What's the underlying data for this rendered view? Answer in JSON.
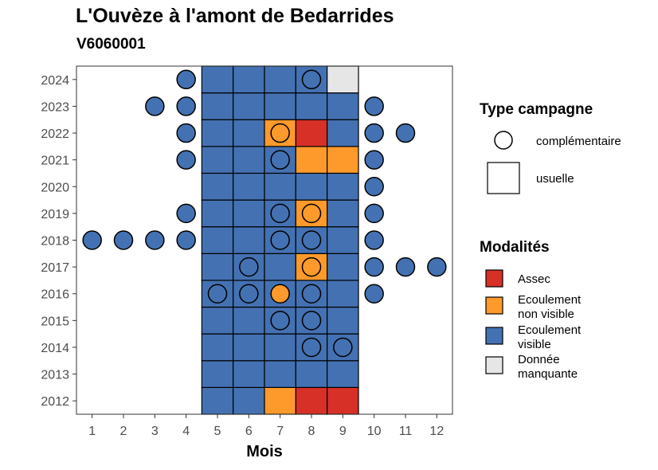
{
  "chart_data": {
    "type": "heatmap",
    "title": "L'Ouvèze à l'amont de Bedarrides",
    "subtitle": "V6060001",
    "xlabel": "Mois",
    "ylabel": "",
    "x_ticks": [
      "1",
      "2",
      "3",
      "4",
      "5",
      "6",
      "7",
      "8",
      "9",
      "10",
      "11",
      "12"
    ],
    "y_ticks": [
      "2012",
      "2013",
      "2014",
      "2015",
      "2016",
      "2017",
      "2018",
      "2019",
      "2020",
      "2021",
      "2022",
      "2023",
      "2024"
    ],
    "xlim": [
      0.5,
      12.5
    ],
    "ylim": [
      2011.5,
      2024.5
    ],
    "legend_position": "right",
    "legend": {
      "type_title": "Type campagne",
      "type_items": [
        {
          "label": "complémentaire",
          "shape": "circle"
        },
        {
          "label": "usuelle",
          "shape": "square"
        }
      ],
      "modalites_title": "Modalités",
      "modalites_items": [
        {
          "key": "assec",
          "lines": [
            "Assec"
          ]
        },
        {
          "key": "ecoulement_non_visible",
          "lines": [
            "Ecoulement",
            "non visible"
          ]
        },
        {
          "key": "ecoulement_visible",
          "lines": [
            "Ecoulement",
            "visible"
          ]
        },
        {
          "key": "donnee_manquante",
          "lines": [
            "Donnée",
            "manquante"
          ]
        }
      ]
    },
    "colors": {
      "assec": "#d73027",
      "ecoulement_non_visible": "#fd9a2b",
      "ecoulement_visible": "#4471b2",
      "donnee_manquante": "#e6e6e6"
    },
    "usuelle": [
      {
        "year": 2012,
        "months": {
          "5": "ecoulement_visible",
          "6": "ecoulement_visible",
          "7": "ecoulement_non_visible",
          "8": "assec",
          "9": "assec"
        }
      },
      {
        "year": 2013,
        "months": {
          "5": "ecoulement_visible",
          "6": "ecoulement_visible",
          "7": "ecoulement_visible",
          "8": "ecoulement_visible",
          "9": "ecoulement_visible"
        }
      },
      {
        "year": 2014,
        "months": {
          "5": "ecoulement_visible",
          "6": "ecoulement_visible",
          "7": "ecoulement_visible",
          "8": "ecoulement_visible",
          "9": "ecoulement_visible"
        }
      },
      {
        "year": 2015,
        "months": {
          "5": "ecoulement_visible",
          "6": "ecoulement_visible",
          "7": "ecoulement_visible",
          "8": "ecoulement_visible",
          "9": "ecoulement_visible"
        }
      },
      {
        "year": 2016,
        "months": {
          "5": "ecoulement_visible",
          "6": "ecoulement_visible",
          "7": "ecoulement_visible",
          "8": "ecoulement_visible",
          "9": "ecoulement_visible"
        }
      },
      {
        "year": 2017,
        "months": {
          "5": "ecoulement_visible",
          "6": "ecoulement_visible",
          "7": "ecoulement_visible",
          "8": "ecoulement_non_visible",
          "9": "ecoulement_visible"
        }
      },
      {
        "year": 2018,
        "months": {
          "5": "ecoulement_visible",
          "6": "ecoulement_visible",
          "7": "ecoulement_visible",
          "8": "ecoulement_visible",
          "9": "ecoulement_visible"
        }
      },
      {
        "year": 2019,
        "months": {
          "5": "ecoulement_visible",
          "6": "ecoulement_visible",
          "7": "ecoulement_visible",
          "8": "ecoulement_non_visible",
          "9": "ecoulement_visible"
        }
      },
      {
        "year": 2020,
        "months": {
          "5": "ecoulement_visible",
          "6": "ecoulement_visible",
          "7": "ecoulement_visible",
          "8": "ecoulement_visible",
          "9": "ecoulement_visible"
        }
      },
      {
        "year": 2021,
        "months": {
          "5": "ecoulement_visible",
          "6": "ecoulement_visible",
          "7": "ecoulement_visible",
          "8": "ecoulement_non_visible",
          "9": "ecoulement_non_visible"
        }
      },
      {
        "year": 2022,
        "months": {
          "5": "ecoulement_visible",
          "6": "ecoulement_visible",
          "7": "ecoulement_non_visible",
          "8": "assec",
          "9": "ecoulement_visible"
        }
      },
      {
        "year": 2023,
        "months": {
          "5": "ecoulement_visible",
          "6": "ecoulement_visible",
          "7": "ecoulement_visible",
          "8": "ecoulement_visible",
          "9": "ecoulement_visible"
        }
      },
      {
        "year": 2024,
        "months": {
          "5": "ecoulement_visible",
          "6": "ecoulement_visible",
          "7": "ecoulement_visible",
          "8": "ecoulement_visible",
          "9": "donnee_manquante"
        }
      }
    ],
    "complementaire": [
      {
        "year": 2024,
        "month": 4,
        "modalite": "ecoulement_visible"
      },
      {
        "year": 2024,
        "month": 8,
        "modalite": "ecoulement_visible"
      },
      {
        "year": 2023,
        "month": 3,
        "modalite": "ecoulement_visible"
      },
      {
        "year": 2023,
        "month": 4,
        "modalite": "ecoulement_visible"
      },
      {
        "year": 2023,
        "month": 10,
        "modalite": "ecoulement_visible"
      },
      {
        "year": 2022,
        "month": 4,
        "modalite": "ecoulement_visible"
      },
      {
        "year": 2022,
        "month": 7,
        "modalite": "ecoulement_non_visible"
      },
      {
        "year": 2022,
        "month": 10,
        "modalite": "ecoulement_visible"
      },
      {
        "year": 2022,
        "month": 11,
        "modalite": "ecoulement_visible"
      },
      {
        "year": 2021,
        "month": 4,
        "modalite": "ecoulement_visible"
      },
      {
        "year": 2021,
        "month": 7,
        "modalite": "ecoulement_visible"
      },
      {
        "year": 2021,
        "month": 10,
        "modalite": "ecoulement_visible"
      },
      {
        "year": 2020,
        "month": 10,
        "modalite": "ecoulement_visible"
      },
      {
        "year": 2019,
        "month": 4,
        "modalite": "ecoulement_visible"
      },
      {
        "year": 2019,
        "month": 7,
        "modalite": "ecoulement_visible"
      },
      {
        "year": 2019,
        "month": 8,
        "modalite": "ecoulement_non_visible"
      },
      {
        "year": 2019,
        "month": 10,
        "modalite": "ecoulement_visible"
      },
      {
        "year": 2018,
        "month": 1,
        "modalite": "ecoulement_visible"
      },
      {
        "year": 2018,
        "month": 2,
        "modalite": "ecoulement_visible"
      },
      {
        "year": 2018,
        "month": 3,
        "modalite": "ecoulement_visible"
      },
      {
        "year": 2018,
        "month": 4,
        "modalite": "ecoulement_visible"
      },
      {
        "year": 2018,
        "month": 7,
        "modalite": "ecoulement_visible"
      },
      {
        "year": 2018,
        "month": 8,
        "modalite": "ecoulement_visible"
      },
      {
        "year": 2018,
        "month": 10,
        "modalite": "ecoulement_visible"
      },
      {
        "year": 2017,
        "month": 6,
        "modalite": "ecoulement_visible"
      },
      {
        "year": 2017,
        "month": 8,
        "modalite": "ecoulement_non_visible"
      },
      {
        "year": 2017,
        "month": 10,
        "modalite": "ecoulement_visible"
      },
      {
        "year": 2017,
        "month": 11,
        "modalite": "ecoulement_visible"
      },
      {
        "year": 2017,
        "month": 12,
        "modalite": "ecoulement_visible"
      },
      {
        "year": 2016,
        "month": 5,
        "modalite": "ecoulement_visible"
      },
      {
        "year": 2016,
        "month": 6,
        "modalite": "ecoulement_visible"
      },
      {
        "year": 2016,
        "month": 7,
        "modalite": "ecoulement_non_visible"
      },
      {
        "year": 2016,
        "month": 8,
        "modalite": "ecoulement_visible"
      },
      {
        "year": 2016,
        "month": 10,
        "modalite": "ecoulement_visible"
      },
      {
        "year": 2015,
        "month": 7,
        "modalite": "ecoulement_visible"
      },
      {
        "year": 2015,
        "month": 8,
        "modalite": "ecoulement_visible"
      },
      {
        "year": 2014,
        "month": 8,
        "modalite": "ecoulement_visible"
      },
      {
        "year": 2014,
        "month": 9,
        "modalite": "ecoulement_visible"
      }
    ]
  }
}
